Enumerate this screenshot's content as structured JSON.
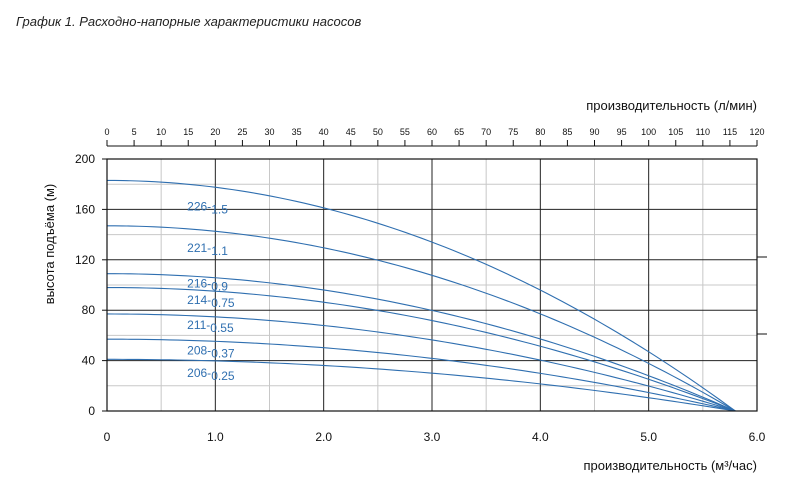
{
  "caption": "График   1.   Расходно-напорные   характеристики   насосов",
  "chart_data": {
    "type": "line",
    "x_bottom": {
      "label": "производительность (м³/час)",
      "range": [
        0,
        6
      ],
      "ticks": [
        "0",
        "1.0",
        "2.0",
        "3.0",
        "4.0",
        "5.0",
        "6.0"
      ],
      "tick_values": [
        0,
        1,
        2,
        3,
        4,
        5,
        6
      ]
    },
    "x_top": {
      "label": "производительность (л/мин)",
      "range": [
        0,
        120
      ],
      "ticks": [
        "0",
        "5",
        "10",
        "15",
        "20",
        "25",
        "30",
        "35",
        "40",
        "45",
        "50",
        "55",
        "60",
        "65",
        "70",
        "75",
        "80",
        "85",
        "90",
        "95",
        "100",
        "105",
        "110",
        "115",
        "120"
      ]
    },
    "y": {
      "label": "высота подъёма (м)",
      "range": [
        0,
        200
      ],
      "ticks": [
        "0",
        "40",
        "80",
        "120",
        "160",
        "200"
      ],
      "tick_values": [
        0,
        40,
        80,
        120,
        160,
        200
      ]
    },
    "grid": true,
    "accent_color": "#2f6fb0",
    "series": [
      {
        "name": "226-1.5",
        "label": "226-",
        "sub": "1.5",
        "shutoff": 183,
        "zero_flow": 5.8,
        "label_at": [
          0.74,
          159
        ]
      },
      {
        "name": "221-1.1",
        "label": "221-",
        "sub": "1.1",
        "shutoff": 147,
        "zero_flow": 5.8,
        "label_at": [
          0.74,
          126
        ]
      },
      {
        "name": "216-0.9",
        "label": "216-",
        "sub": "0.9",
        "shutoff": 109,
        "zero_flow": 5.8,
        "label_at": [
          0.74,
          98
        ]
      },
      {
        "name": "214-0.75",
        "label": "214-",
        "sub": "0.75",
        "shutoff": 98,
        "zero_flow": 5.8,
        "label_at": [
          0.74,
          85
        ]
      },
      {
        "name": "211-0.55",
        "label": "211-",
        "sub": "0.55",
        "shutoff": 77,
        "zero_flow": 5.8,
        "label_at": [
          0.74,
          65
        ]
      },
      {
        "name": "208-0.37",
        "label": "208-",
        "sub": "0.37",
        "shutoff": 57,
        "zero_flow": 5.8,
        "label_at": [
          0.74,
          45
        ]
      },
      {
        "name": "206-0.25",
        "label": "206-",
        "sub": "0.25",
        "shutoff": 41,
        "zero_flow": 5.8,
        "label_at": [
          0.74,
          27
        ]
      }
    ]
  }
}
